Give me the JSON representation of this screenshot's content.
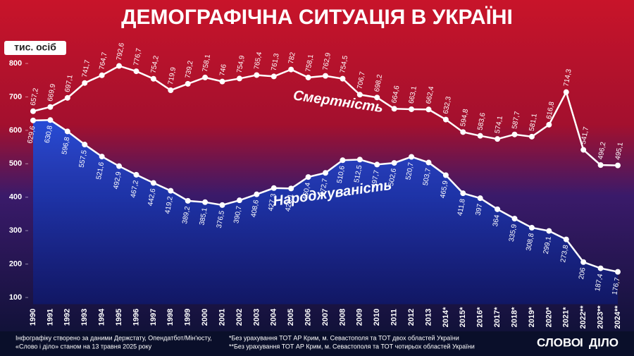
{
  "chart_data": {
    "type": "line",
    "title": "ДЕМОГРАФІЧНА СИТУАЦІЯ В УКРАЇНІ",
    "y_label": "тис. осіб",
    "categories": [
      "1990",
      "1991",
      "1992",
      "1993",
      "1994",
      "1995",
      "1996",
      "1997",
      "1998",
      "1999",
      "2000",
      "2001",
      "2002",
      "2003",
      "2004",
      "2005",
      "2006",
      "2007",
      "2008",
      "2009",
      "2010",
      "2011",
      "2012",
      "2013",
      "2014*",
      "2015*",
      "2016*",
      "2017*",
      "2018*",
      "2019*",
      "2020*",
      "2021*",
      "2022**",
      "2023**",
      "2024**"
    ],
    "series": [
      {
        "name": "Смертність",
        "color": "#ffffff",
        "values": [
          657.2,
          669.9,
          697.1,
          741.7,
          764.7,
          792.6,
          776.7,
          754.2,
          719.9,
          739.2,
          758.1,
          746,
          754.9,
          765.4,
          761.3,
          782,
          758.1,
          762.9,
          754.5,
          706.7,
          698.2,
          664.6,
          663.1,
          662.4,
          632.3,
          594.8,
          583.6,
          574.1,
          587.7,
          581.1,
          616.8,
          714.3,
          541.7,
          496.2,
          495.1
        ],
        "value_labels": [
          "657,2",
          "669,9",
          "697,1",
          "741,7",
          "764,7",
          "792,6",
          "776,7",
          "754,2",
          "719,9",
          "739,2",
          "758,1",
          "746",
          "754,9",
          "765,4",
          "761,3",
          "782",
          "758,1",
          "762,9",
          "754,5",
          "706,7",
          "698,2",
          "664,6",
          "663,1",
          "662,4",
          "632,3",
          "594,8",
          "583,6",
          "574,1",
          "587,7",
          "581,1",
          "616,8",
          "714,3",
          "541,7",
          "496,2",
          "495,1"
        ]
      },
      {
        "name": "Народжуваність",
        "color": "#ffffff",
        "values": [
          629.6,
          630.8,
          596.8,
          557.5,
          521.6,
          492.9,
          467.2,
          442.6,
          419.2,
          389.2,
          385.1,
          376.5,
          390.7,
          408.6,
          427.3,
          426.1,
          460.4,
          472.7,
          510.6,
          512.5,
          497.7,
          502.6,
          520.7,
          503.7,
          465.9,
          411.8,
          397,
          364,
          335.9,
          308.8,
          299.1,
          273.8,
          206,
          187.4,
          176.7
        ],
        "value_labels": [
          "629,6",
          "630,8",
          "596,8",
          "557,5",
          "521,6",
          "492,9",
          "467,2",
          "442,6",
          "419,2",
          "389,2",
          "385,1",
          "376,5",
          "390,7",
          "408,6",
          "427,3",
          "426,1",
          "460,4",
          "472,7",
          "510,6",
          "512,5",
          "497,7",
          "502,6",
          "520,7",
          "503,7",
          "465,9",
          "411,8",
          "397",
          "364",
          "335,9",
          "308,8",
          "299,1",
          "273,8",
          "206",
          "187,4",
          "176,7"
        ]
      }
    ],
    "ylim": [
      80,
      810
    ],
    "yticks": [
      100,
      200,
      300,
      400,
      500,
      600,
      700,
      800
    ],
    "grid": false,
    "footnotes": [
      "Інфографіку створено за даними Держстату, Опендатбот/Мін'юсту,",
      "«Слово і діло» станом на 13 травня 2025 року",
      "*Без урахування ТОТ АР Крим, м. Севастополя та ТОТ двох областей України",
      "**Без урахування ТОТ АР Крим, м. Севастополя та ТОТ чотирьох областей України"
    ],
    "logo": [
      "СЛОВО",
      "І",
      "ДІЛО"
    ]
  }
}
